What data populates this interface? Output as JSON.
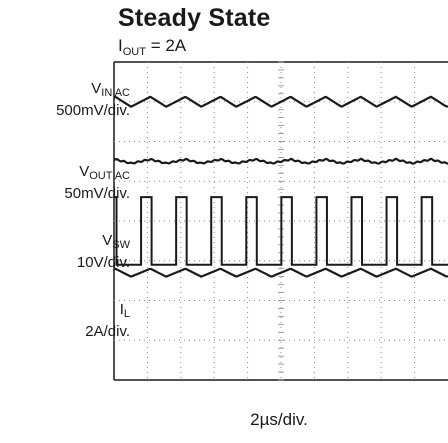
{
  "title": "Steady State",
  "subtitle": {
    "main": "I",
    "sub": "OUT",
    "rest": " = 2A"
  },
  "channels": [
    {
      "name_main": "V",
      "name_sub": "IN AC",
      "scale": "500mV/div."
    },
    {
      "name_main": "V",
      "name_sub": "OUT AC",
      "scale": "50mV/div."
    },
    {
      "name_main": "V",
      "name_sub": "SW",
      "scale": "10V/div."
    },
    {
      "name_main": "I",
      "name_sub": "L",
      "scale": "2A/div."
    }
  ],
  "xlabel": "2µs/div.",
  "chart_data": {
    "type": "line",
    "title": "Steady State",
    "subtitle": "IOUT = 2A",
    "xlabel": "2µs/div.",
    "time_per_div_us": 2,
    "divisions": 10,
    "switching_period_us": 2.1,
    "series": [
      {
        "name": "VIN AC",
        "scale": "500mV/div.",
        "waveform": "triangle ripple",
        "ripple_pp_div": 0.25,
        "offset_div": 3.0
      },
      {
        "name": "VOUT AC",
        "scale": "50mV/div.",
        "waveform": "small ripple",
        "ripple_pp_div": 0.1,
        "offset_div": 1.5
      },
      {
        "name": "VSW",
        "scale": "10V/div.",
        "waveform": "square",
        "high_div": 0.6,
        "low_div": -1.1,
        "offset_div": 0.0
      },
      {
        "name": "IL",
        "scale": "2A/div.",
        "waveform": "triangle ripple",
        "ripple_pp_div": 0.2,
        "offset_div": -1.3
      }
    ]
  }
}
